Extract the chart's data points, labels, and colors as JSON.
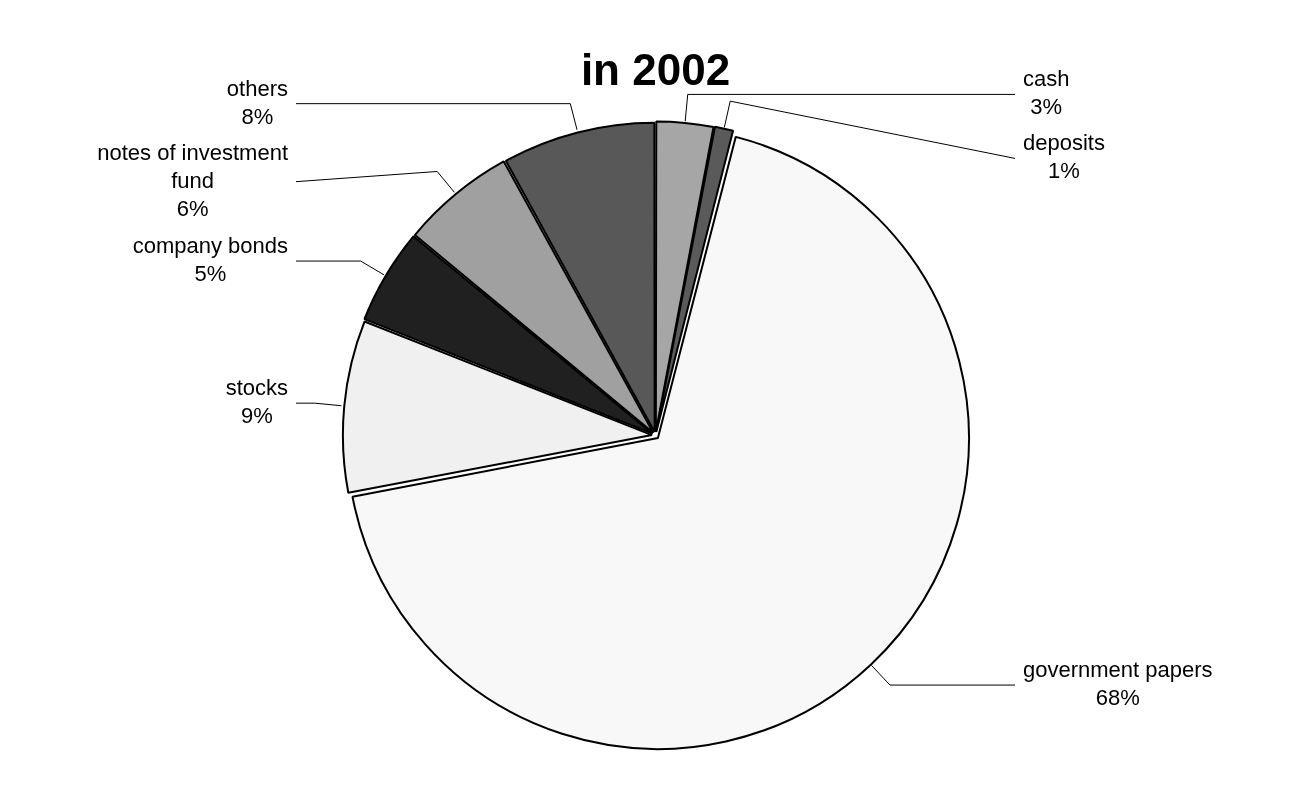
{
  "chart_data": {
    "type": "pie",
    "title": "in 2002",
    "categories": [
      "cash",
      "deposits",
      "government papers",
      "stocks",
      "company bonds",
      "notes of investment fund",
      "others"
    ],
    "values": [
      3,
      1,
      68,
      9,
      5,
      6,
      8
    ],
    "colors": [
      "#a6a6a6",
      "#5a5a5a",
      "#f8f8f8",
      "#f0f0f0",
      "#202020",
      "#a0a0a0",
      "#585858"
    ],
    "value_labels": [
      "3%",
      "1%",
      "68%",
      "9%",
      "5%",
      "6%",
      "8%"
    ],
    "legend": false
  }
}
